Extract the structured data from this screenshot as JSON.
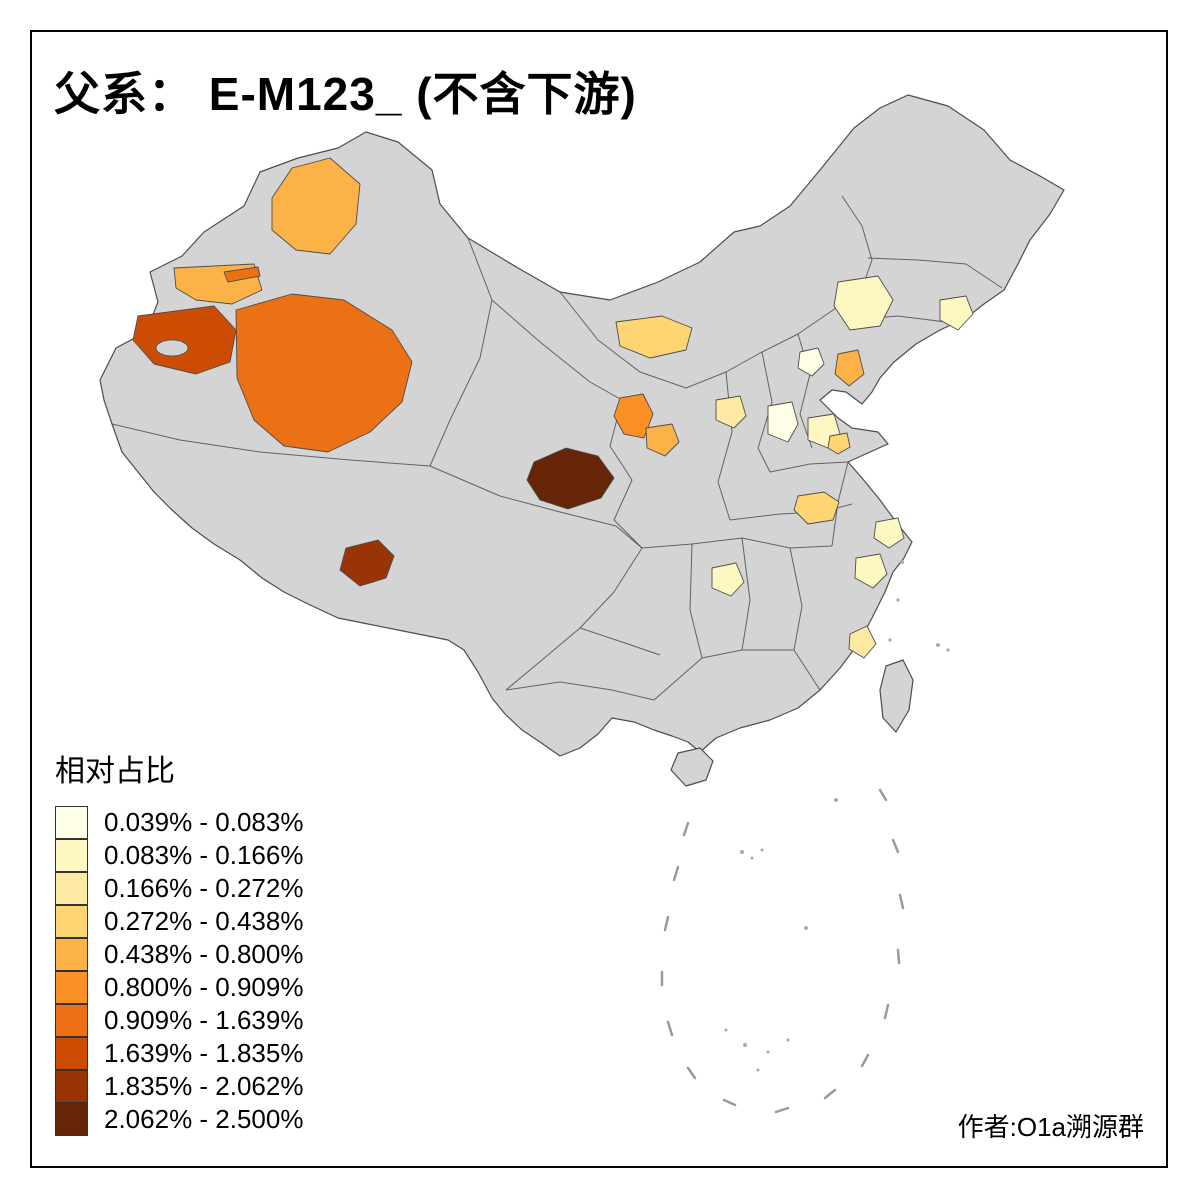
{
  "title": "父系：  E-M123_ (不含下游)",
  "author": "作者:O1a溯源群",
  "legend": {
    "title": "相对占比",
    "entries": [
      {
        "label": "0.039% - 0.083%",
        "color": "#FFFFE5"
      },
      {
        "label": "0.083% - 0.166%",
        "color": "#FFF7C2"
      },
      {
        "label": "0.166% - 0.272%",
        "color": "#FEE9A3"
      },
      {
        "label": "0.272% - 0.438%",
        "color": "#FED573"
      },
      {
        "label": "0.438% - 0.800%",
        "color": "#FDB247"
      },
      {
        "label": "0.800% - 0.909%",
        "color": "#FB9125"
      },
      {
        "label": "0.909% - 1.639%",
        "color": "#EC7014"
      },
      {
        "label": "1.639% - 1.835%",
        "color": "#CC4C02"
      },
      {
        "label": "1.835% - 2.062%",
        "color": "#993404"
      },
      {
        "label": "2.062% - 2.500%",
        "color": "#662506"
      }
    ]
  },
  "map": {
    "base_fill": "#d4d4d4",
    "boundary_stroke": "#4d4d4d",
    "sea_mark": "#9a9a9a",
    "background": "#ffffff",
    "regions": {
      "ili": 4,
      "west-border": 4,
      "west-sliver": 6,
      "kashgar": 7,
      "south-xinjiang": 6,
      "bayannur": 3,
      "jilin": 1,
      "yanbian": 1,
      "beijing": 0,
      "tianjin": 4,
      "shanxi": 2,
      "hebei-south": 0,
      "shandong-west": 1,
      "shandong-central": 3,
      "ningxia": 5,
      "gansu-east": 4,
      "qinghai-east": 9,
      "tibet-lhasa": 8,
      "henan": 3,
      "jiangsu-south": 1,
      "hubei": 1,
      "zhejiang": 1,
      "fujian-coast": 2
    }
  }
}
